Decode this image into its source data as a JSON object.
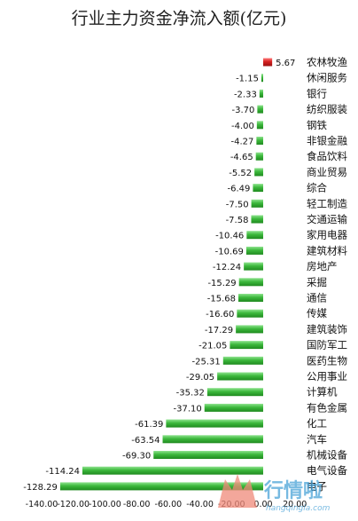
{
  "chart_data": {
    "type": "bar",
    "orientation": "horizontal",
    "title": "行业主力资金净流入额(亿元)",
    "categories": [
      "农林牧渔",
      "休闲服务",
      "银行",
      "纺织服装",
      "钢铁",
      "非银金融",
      "食品饮料",
      "商业贸易",
      "综合",
      "轻工制造",
      "交通运输",
      "家用电器",
      "建筑材料",
      "房地产",
      "采掘",
      "通信",
      "传媒",
      "建筑装饰",
      "国防军工",
      "医药生物",
      "公用事业",
      "计算机",
      "有色金属",
      "化工",
      "汽车",
      "机械设备",
      "电气设备",
      "电子"
    ],
    "values": [
      5.67,
      -1.15,
      -2.33,
      -3.7,
      -4.0,
      -4.27,
      -4.65,
      -5.52,
      -6.49,
      -7.5,
      -7.58,
      -10.46,
      -10.69,
      -12.24,
      -15.29,
      -15.68,
      -16.6,
      -17.29,
      -21.05,
      -25.31,
      -29.05,
      -35.32,
      -37.1,
      -61.39,
      -63.54,
      -69.3,
      -114.24,
      -128.29
    ],
    "value_labels": [
      "5.67",
      "-1.15",
      "-2.33",
      "-3.70",
      "-4.00",
      "-4.27",
      "-4.65",
      "-5.52",
      "-6.49",
      "-7.50",
      "-7.58",
      "-10.46",
      "-10.69",
      "-12.24",
      "-15.29",
      "-15.68",
      "-16.60",
      "-17.29",
      "-21.05",
      "-25.31",
      "-29.05",
      "-35.32",
      "-37.10",
      "-61.39",
      "-63.54",
      "-69.30",
      "-114.24",
      "-128.29"
    ],
    "xlim": [
      -140,
      20
    ],
    "x_ticks": [
      -140,
      -120,
      -100,
      -80,
      -60,
      -40,
      -20,
      0,
      20
    ],
    "x_tick_labels": [
      "-140.00",
      "-120.00",
      "-100.00",
      "-80.00",
      "-60.00",
      "-40.00",
      "-20.00",
      "0.00",
      "20.00"
    ],
    "grid": false,
    "legend": "none",
    "colors": {
      "positive": "#d42020",
      "negative": "#3cb83c",
      "title": "#222222",
      "text": "#111111"
    }
  },
  "watermark": {
    "text": "行情啦",
    "subtext": "hangqingla.com"
  }
}
